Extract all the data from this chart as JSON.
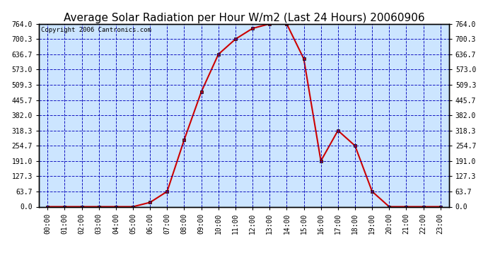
{
  "title": "Average Solar Radiation per Hour W/m2 (Last 24 Hours) 20060906",
  "copyright": "Copyright 2006 Cantronics.com",
  "hours": [
    "00:00",
    "01:00",
    "02:00",
    "03:00",
    "04:00",
    "05:00",
    "06:00",
    "07:00",
    "08:00",
    "09:00",
    "10:00",
    "11:00",
    "12:00",
    "13:00",
    "14:00",
    "15:00",
    "16:00",
    "17:00",
    "18:00",
    "19:00",
    "20:00",
    "21:00",
    "22:00",
    "23:00"
  ],
  "values": [
    0.0,
    0.0,
    0.0,
    0.0,
    0.0,
    0.0,
    18.0,
    63.7,
    280.0,
    480.0,
    636.7,
    700.3,
    745.0,
    764.0,
    764.0,
    618.0,
    191.0,
    318.3,
    254.7,
    63.7,
    0.0,
    0.0,
    0.0,
    0.0
  ],
  "yticks": [
    0.0,
    63.7,
    127.3,
    191.0,
    254.7,
    318.3,
    382.0,
    445.7,
    509.3,
    573.0,
    636.7,
    700.3,
    764.0
  ],
  "ymax": 764.0,
  "line_color": "#cc0000",
  "marker_color": "#cc0000",
  "bg_color": "#cce5ff",
  "grid_color": "#0000bb",
  "title_fontsize": 11,
  "copyright_fontsize": 6.5,
  "tick_fontsize": 7,
  "ytick_fontsize": 7
}
